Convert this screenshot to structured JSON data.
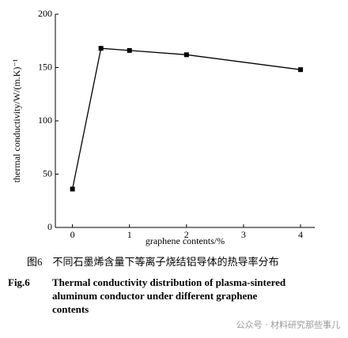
{
  "chart_data": {
    "type": "line",
    "x_label": "graphene contents/%",
    "y_label": "thermal conductivity/W/(m.K)⁻¹",
    "x": [
      0,
      0.5,
      1,
      2,
      4
    ],
    "series": [
      {
        "color": "#000000",
        "values": [
          36,
          168,
          166,
          162,
          148
        ]
      }
    ],
    "xlim": [
      -0.3,
      4.25
    ],
    "xticks": [
      0,
      1,
      2,
      3,
      4
    ],
    "ylim": [
      0,
      200
    ],
    "yticks": [
      0,
      50,
      100,
      150,
      200
    ]
  },
  "caption_cn": "图6　不同石墨烯含量下等离子烧结铝导体的热导率分布",
  "caption_en_label": "Fig.6",
  "caption_en_lines": [
    "Thermal conductivity distribution of plasma-sintered",
    "aluminum conductor under different graphene",
    "contents"
  ],
  "watermark": "公众号 · 材料研究那些事儿"
}
